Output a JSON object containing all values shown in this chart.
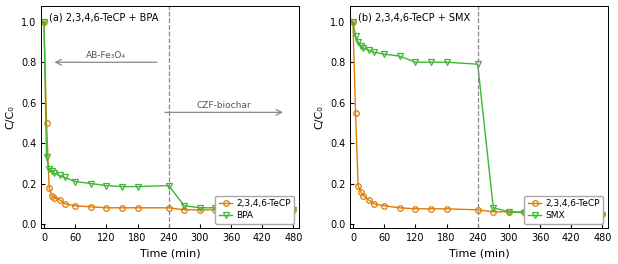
{
  "panel_a": {
    "title": "(a) 2,3,4,6-TeCP + BPA",
    "tecp_x": [
      0,
      5,
      10,
      15,
      20,
      30,
      40,
      60,
      90,
      120,
      150,
      180,
      240,
      270,
      300,
      330,
      360,
      420,
      480
    ],
    "tecp_y": [
      1.0,
      0.5,
      0.18,
      0.14,
      0.13,
      0.12,
      0.1,
      0.09,
      0.085,
      0.08,
      0.08,
      0.08,
      0.08,
      0.07,
      0.07,
      0.07,
      0.07,
      0.07,
      0.07
    ],
    "bpa_x": [
      0,
      5,
      10,
      15,
      20,
      30,
      40,
      60,
      90,
      120,
      150,
      180,
      240,
      270,
      300,
      330,
      360,
      420,
      480
    ],
    "bpa_y": [
      1.0,
      0.33,
      0.27,
      0.26,
      0.25,
      0.24,
      0.23,
      0.21,
      0.2,
      0.19,
      0.185,
      0.185,
      0.19,
      0.09,
      0.08,
      0.08,
      0.08,
      0.07,
      0.07
    ],
    "vline_x": 240,
    "arrow1_text": "AB-Fe₃O₄",
    "arrow2_text": "CZF-biochar",
    "legend_tecp": "2,3,4,6-TeCP",
    "legend_bpa": "BPA"
  },
  "panel_b": {
    "title": "(b) 2,3,4,6-TeCP + SMX",
    "tecp_x": [
      0,
      5,
      10,
      15,
      20,
      30,
      40,
      60,
      90,
      120,
      150,
      180,
      240,
      270,
      300,
      330,
      360,
      420,
      480
    ],
    "tecp_y": [
      1.0,
      0.55,
      0.19,
      0.16,
      0.14,
      0.12,
      0.1,
      0.09,
      0.08,
      0.075,
      0.075,
      0.075,
      0.07,
      0.06,
      0.06,
      0.06,
      0.06,
      0.055,
      0.05
    ],
    "smx_x": [
      0,
      5,
      10,
      15,
      20,
      30,
      40,
      60,
      90,
      120,
      150,
      180,
      240,
      270,
      300,
      330,
      360,
      420,
      480
    ],
    "smx_y": [
      1.0,
      0.93,
      0.9,
      0.88,
      0.87,
      0.86,
      0.85,
      0.84,
      0.83,
      0.8,
      0.8,
      0.8,
      0.79,
      0.08,
      0.06,
      0.055,
      0.05,
      0.04,
      0.04
    ],
    "vline_x": 240,
    "legend_tecp": "2,3,4,6-TeCP",
    "legend_smx": "SMX"
  },
  "xlabel": "Time (min)",
  "ylabel": "C/C₀",
  "xlim": [
    -5,
    490
  ],
  "ylim": [
    -0.02,
    1.08
  ],
  "xticks": [
    0,
    60,
    120,
    180,
    240,
    300,
    360,
    420,
    480
  ],
  "yticks": [
    0.0,
    0.2,
    0.4,
    0.6,
    0.8,
    1.0
  ],
  "tecp_color": "#e07b00",
  "bpa_color": "#3db832",
  "smx_color": "#3db832",
  "vline_color": "#888888",
  "arrow_color": "#888888"
}
